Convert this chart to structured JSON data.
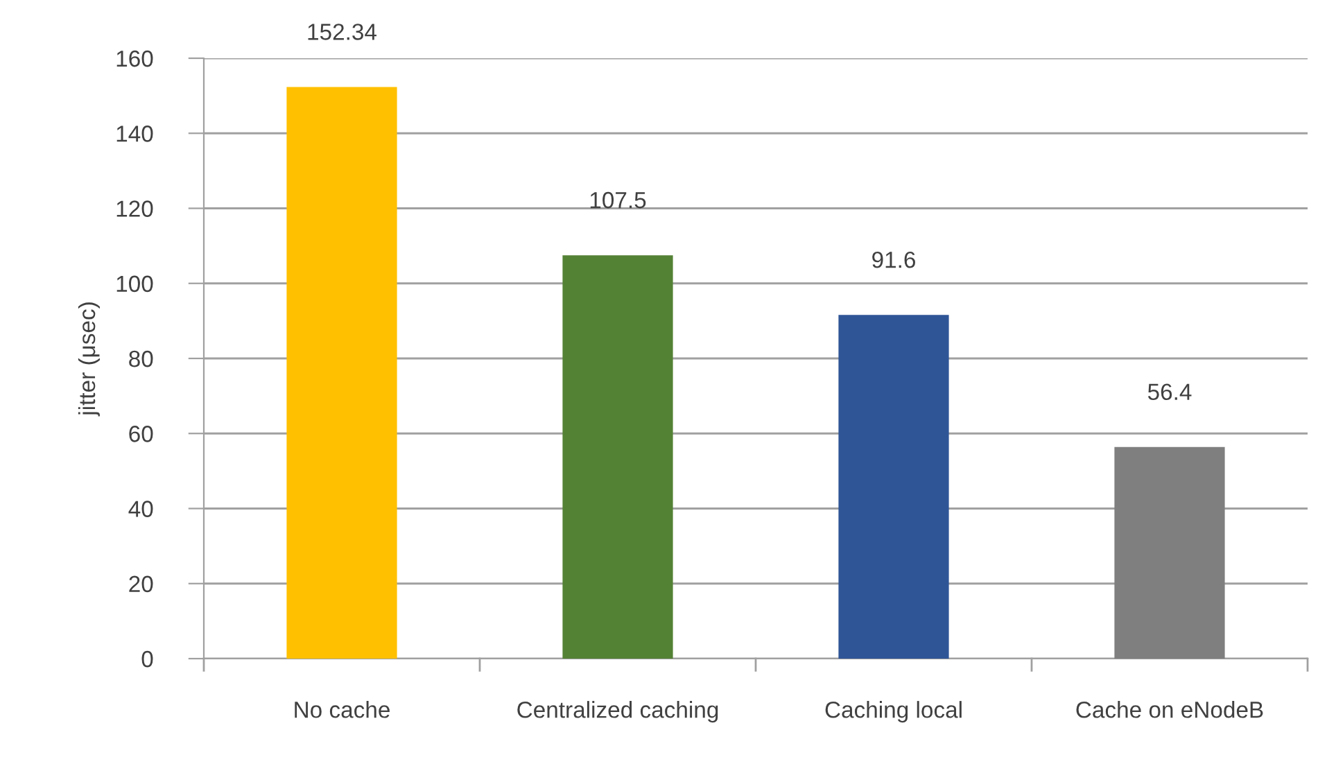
{
  "chart_data": {
    "type": "bar",
    "ylabel": "jitter (μsec)",
    "categories": [
      "No cache",
      "Centralized caching",
      "Caching local",
      "Cache on eNodeB"
    ],
    "values": [
      152.34,
      107.5,
      91.6,
      56.4
    ],
    "colors": [
      "#ffc000",
      "#548235",
      "#2f5597",
      "#7f7f7f"
    ],
    "ylim": [
      0,
      160
    ],
    "yticks": [
      0,
      20,
      40,
      60,
      80,
      100,
      120,
      140,
      160
    ],
    "grid": "y",
    "data_labels": true
  }
}
